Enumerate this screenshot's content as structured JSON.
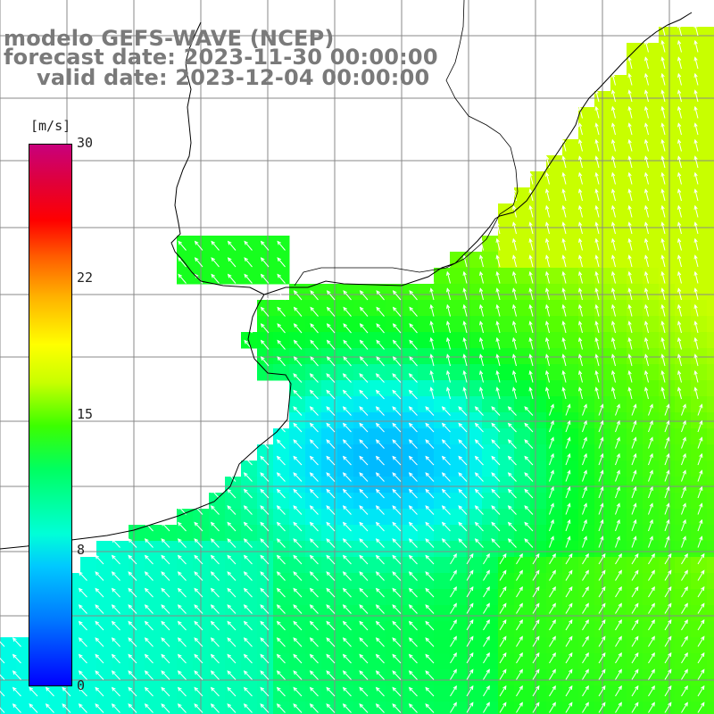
{
  "title": {
    "line1": "modelo GEFS-WAVE (NCEP)",
    "line2": "forecast date: 2023-11-30 00:00:00",
    "line3": "valid date: 2023-12-04 00:00:00"
  },
  "colorbar": {
    "unit": "[m/s]",
    "ticks": [
      "30",
      "22",
      "15",
      "8",
      "0"
    ],
    "colors": [
      "#0000ff",
      "#00c8ff",
      "#00ff60",
      "#ffff00",
      "#ff0000",
      "#c8007c"
    ]
  },
  "map": {
    "land_color": "#ffffff",
    "grid_color": "#888888",
    "coast_color": "#000000",
    "arrow_color": "#ffffff",
    "field": "wind speed with direction arrows"
  }
}
